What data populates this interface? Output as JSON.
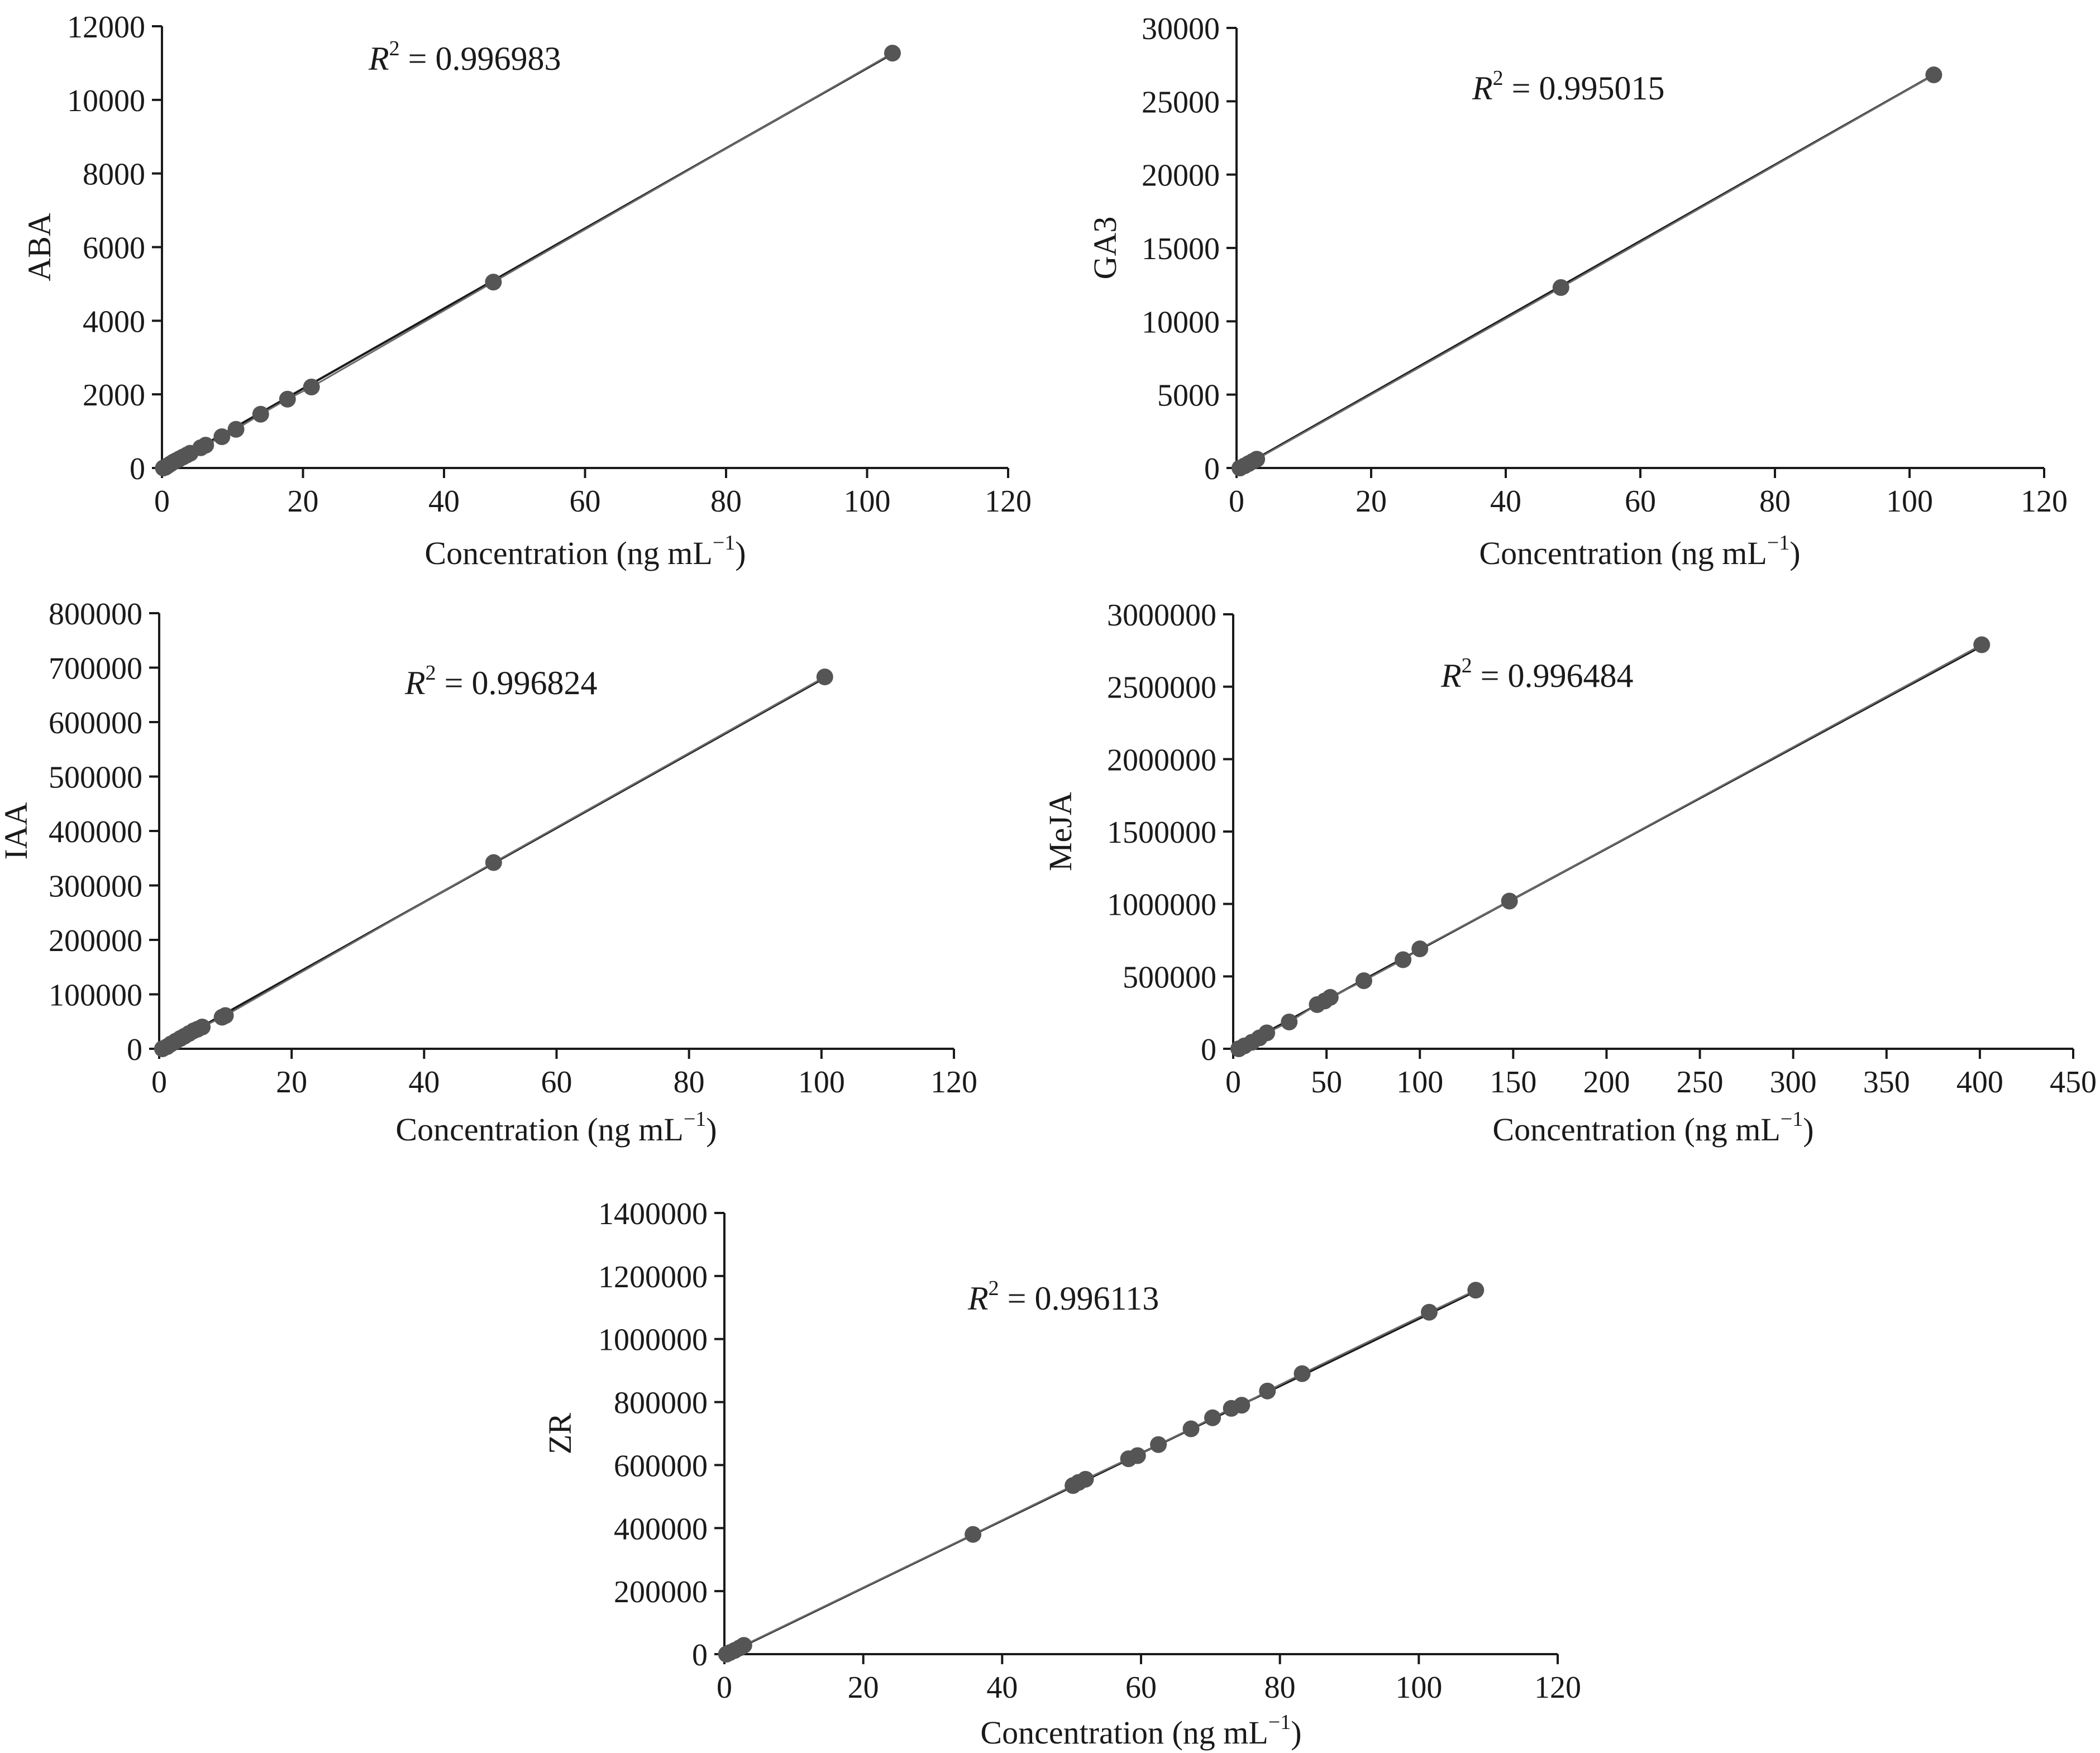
{
  "chart_data": [
    {
      "type": "scatter",
      "xlabel": "Concentration (ng mL",
      "xlabel_sup": "−1",
      "xlabel_end": ")",
      "ylabel": "ABA",
      "xlim": [
        0,
        120
      ],
      "ylim": [
        0,
        12000
      ],
      "xticks": [
        0,
        20,
        40,
        60,
        80,
        100,
        120
      ],
      "yticks": [
        0,
        2000,
        4000,
        6000,
        8000,
        10000,
        12000
      ],
      "r2_label": "R",
      "r2_sup": "2",
      "r2_value": " = 0.996983",
      "fit": {
        "slope": 108.8,
        "intercept": -20
      },
      "points": [
        [
          0.2,
          0
        ],
        [
          0.5,
          20
        ],
        [
          0.8,
          60
        ],
        [
          1.2,
          110
        ],
        [
          1.6,
          160
        ],
        [
          2.0,
          200
        ],
        [
          2.5,
          250
        ],
        [
          3.0,
          300
        ],
        [
          3.5,
          350
        ],
        [
          4.0,
          400
        ],
        [
          5.5,
          550
        ],
        [
          6.2,
          620
        ],
        [
          8.5,
          850
        ],
        [
          10.5,
          1050
        ],
        [
          14,
          1460
        ],
        [
          17.8,
          1870
        ],
        [
          21.2,
          2200
        ],
        [
          47,
          5050
        ],
        [
          103.6,
          11270
        ]
      ]
    },
    {
      "type": "scatter",
      "xlabel": "Concentration (ng mL",
      "xlabel_sup": "−1",
      "xlabel_end": ")",
      "ylabel": "GA3",
      "xlim": [
        0,
        120
      ],
      "ylim": [
        0,
        30000
      ],
      "xticks": [
        0,
        20,
        40,
        60,
        80,
        100,
        120
      ],
      "yticks": [
        0,
        5000,
        10000,
        15000,
        20000,
        25000,
        30000
      ],
      "r2_label": "R",
      "r2_sup": "2",
      "r2_value": " = 0.995015",
      "fit": {
        "slope": 260.0,
        "intercept": -130
      },
      "points": [
        [
          0.5,
          0
        ],
        [
          1.2,
          150
        ],
        [
          1.8,
          300
        ],
        [
          2.4,
          450
        ],
        [
          3.0,
          600
        ],
        [
          48.2,
          12300
        ],
        [
          103.6,
          26800
        ]
      ]
    },
    {
      "type": "scatter",
      "xlabel": "Concentration (ng mL",
      "xlabel_sup": "−1",
      "xlabel_end": ")",
      "ylabel": "IAA",
      "xlim": [
        0,
        120
      ],
      "ylim": [
        0,
        800000
      ],
      "xticks": [
        0,
        20,
        40,
        60,
        80,
        100,
        120
      ],
      "yticks": [
        0,
        100000,
        200000,
        300000,
        400000,
        500000,
        600000,
        700000,
        800000
      ],
      "r2_label": "R",
      "r2_sup": "2",
      "r2_value": " = 0.996824",
      "fit": {
        "slope": 6810,
        "intercept": -3000
      },
      "points": [
        [
          0.5,
          0
        ],
        [
          1.2,
          4000
        ],
        [
          1.8,
          9000
        ],
        [
          2.5,
          14000
        ],
        [
          3.2,
          19000
        ],
        [
          3.8,
          23000
        ],
        [
          4.5,
          28000
        ],
        [
          5.2,
          33000
        ],
        [
          5.8,
          36000
        ],
        [
          6.5,
          40000
        ],
        [
          9.5,
          58000
        ],
        [
          10.0,
          61000
        ],
        [
          50.5,
          342000
        ],
        [
          100.5,
          683000
        ]
      ]
    },
    {
      "type": "scatter",
      "xlabel": "Concentration (ng mL",
      "xlabel_sup": "−1",
      "xlabel_end": ")",
      "ylabel": "MeJA",
      "xlim": [
        0,
        450
      ],
      "ylim": [
        0,
        3000000
      ],
      "xticks": [
        0,
        50,
        100,
        150,
        200,
        250,
        300,
        350,
        400,
        450
      ],
      "yticks": [
        0,
        500000,
        1000000,
        1500000,
        2000000,
        2500000,
        3000000
      ],
      "r2_label": "R",
      "r2_sup": "2",
      "r2_value": " = 0.996484",
      "fit": {
        "slope": 6960,
        "intercept": -10000
      },
      "points": [
        [
          3,
          0
        ],
        [
          6,
          20000
        ],
        [
          10,
          45000
        ],
        [
          14,
          75000
        ],
        [
          18,
          110000
        ],
        [
          30,
          185000
        ],
        [
          45,
          305000
        ],
        [
          49,
          330000
        ],
        [
          52,
          355000
        ],
        [
          70,
          470000
        ],
        [
          91,
          615000
        ],
        [
          100,
          690000
        ],
        [
          148,
          1020000
        ],
        [
          401,
          2790000
        ]
      ]
    },
    {
      "type": "scatter",
      "xlabel": "Concentration (ng mL",
      "xlabel_sup": "−1",
      "xlabel_end": ")",
      "ylabel": "ZR",
      "xlim": [
        0,
        120
      ],
      "ylim": [
        0,
        1400000
      ],
      "xticks": [
        0,
        20,
        40,
        60,
        80,
        100,
        120
      ],
      "yticks": [
        0,
        200000,
        400000,
        600000,
        800000,
        1000000,
        1200000,
        1400000
      ],
      "r2_label": "R",
      "r2_sup": "2",
      "r2_value": " = 0.996113",
      "fit": {
        "slope": 10700,
        "intercept": -6000
      },
      "points": [
        [
          0.3,
          0
        ],
        [
          0.8,
          5000
        ],
        [
          1.5,
          12000
        ],
        [
          2.2,
          20000
        ],
        [
          2.8,
          28000
        ],
        [
          35.8,
          380000
        ],
        [
          50.2,
          535000
        ],
        [
          51.0,
          545000
        ],
        [
          52.0,
          555000
        ],
        [
          58.2,
          620000
        ],
        [
          59.5,
          630000
        ],
        [
          62.5,
          665000
        ],
        [
          67.2,
          715000
        ],
        [
          70.3,
          750000
        ],
        [
          73.0,
          780000
        ],
        [
          74.5,
          790000
        ],
        [
          78.2,
          835000
        ],
        [
          83.2,
          890000
        ],
        [
          101.5,
          1085000
        ],
        [
          108.2,
          1155000
        ]
      ]
    }
  ]
}
